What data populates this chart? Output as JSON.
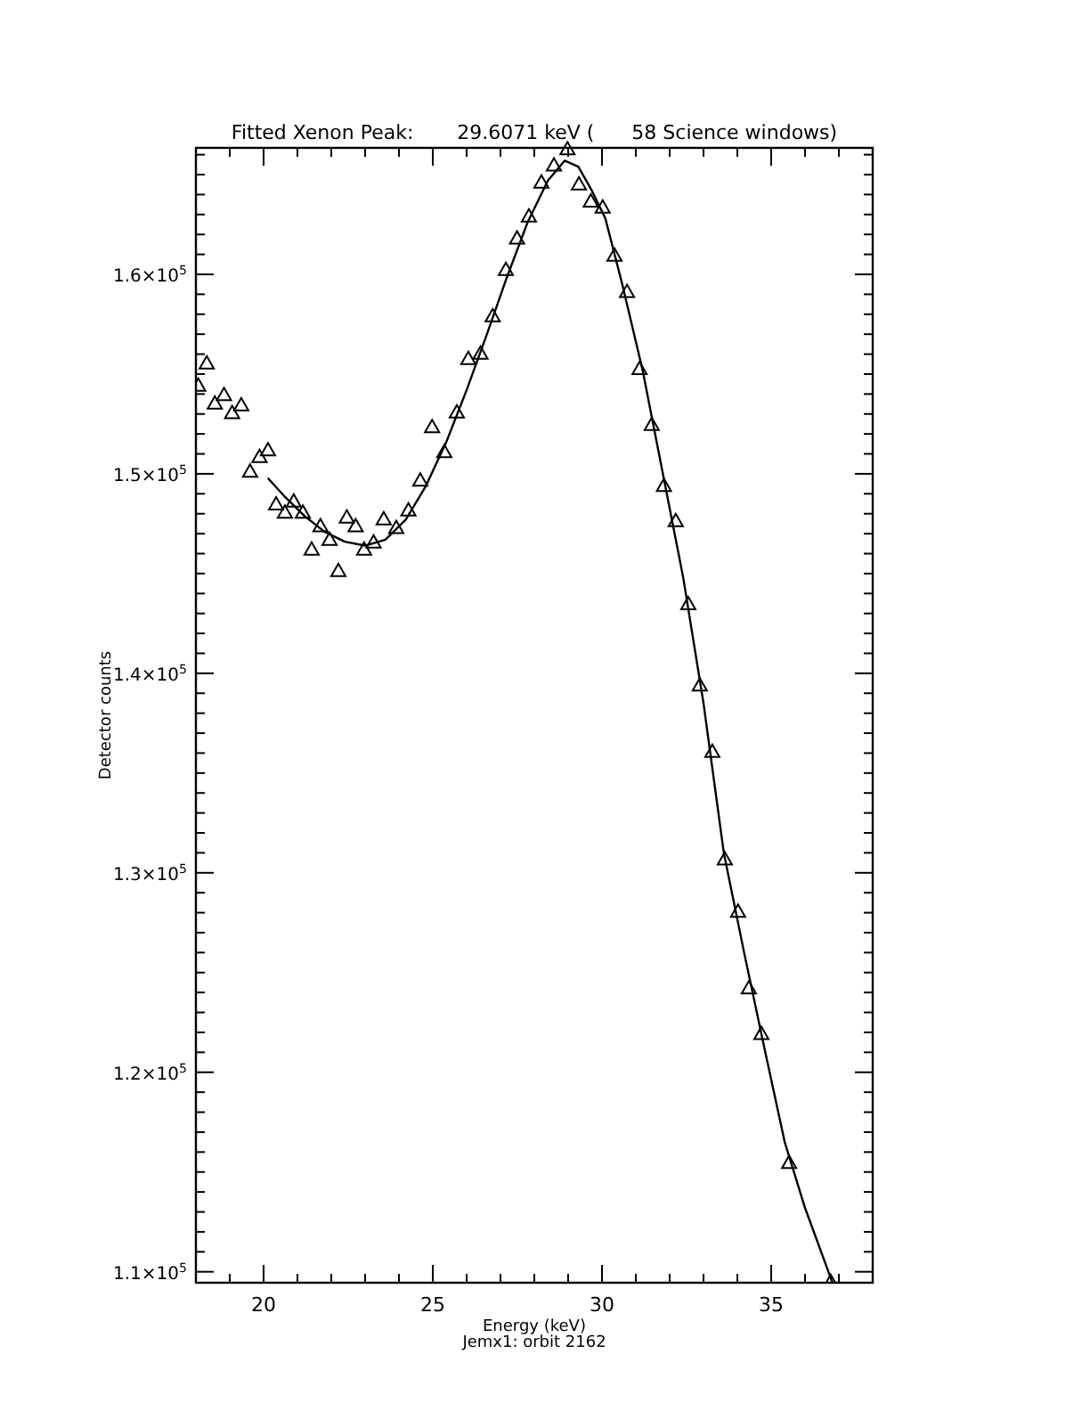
{
  "chart_data": {
    "type": "scatter",
    "title": "Fitted Xenon Peak:       29.6071 keV (      58 Science windows)",
    "xlabel": "Energy (keV)",
    "ylabel": "Detector counts",
    "annotations": [
      "Jemx1: orbit 2162"
    ],
    "marker": "triangle",
    "grid": false,
    "xlim": [
      18,
      38
    ],
    "ylim": [
      109450,
      166340
    ],
    "xticks": [
      {
        "value": 18,
        "label": null
      },
      {
        "value": 19,
        "label": null
      },
      20,
      {
        "value": 21,
        "label": null
      },
      {
        "value": 22,
        "label": null
      },
      {
        "value": 23,
        "label": null
      },
      {
        "value": 24,
        "label": null
      },
      25,
      {
        "value": 26,
        "label": null
      },
      {
        "value": 27,
        "label": null
      },
      {
        "value": 28,
        "label": null
      },
      {
        "value": 29,
        "label": null
      },
      30,
      {
        "value": 31,
        "label": null
      },
      {
        "value": 32,
        "label": null
      },
      {
        "value": 33,
        "label": null
      },
      {
        "value": 34,
        "label": null
      },
      35,
      {
        "value": 36,
        "label": null
      },
      {
        "value": 37,
        "label": null
      },
      {
        "value": 38,
        "label": null
      }
    ],
    "yticks": [
      {
        "value": 110000,
        "label": "1.1×10$^{5}$"
      },
      {
        "value": 111000,
        "label": null
      },
      {
        "value": 112000,
        "label": null
      },
      {
        "value": 113000,
        "label": null
      },
      {
        "value": 114000,
        "label": null
      },
      {
        "value": 115000,
        "label": null
      },
      {
        "value": 116000,
        "label": null
      },
      {
        "value": 117000,
        "label": null
      },
      {
        "value": 118000,
        "label": null
      },
      {
        "value": 119000,
        "label": null
      },
      {
        "value": 120000,
        "label": "1.2×10$^{5}$"
      },
      {
        "value": 121000,
        "label": null
      },
      {
        "value": 122000,
        "label": null
      },
      {
        "value": 123000,
        "label": null
      },
      {
        "value": 124000,
        "label": null
      },
      {
        "value": 125000,
        "label": null
      },
      {
        "value": 126000,
        "label": null
      },
      {
        "value": 127000,
        "label": null
      },
      {
        "value": 128000,
        "label": null
      },
      {
        "value": 129000,
        "label": null
      },
      {
        "value": 130000,
        "label": "1.3×10$^{5}$"
      },
      {
        "value": 131000,
        "label": null
      },
      {
        "value": 132000,
        "label": null
      },
      {
        "value": 133000,
        "label": null
      },
      {
        "value": 134000,
        "label": null
      },
      {
        "value": 135000,
        "label": null
      },
      {
        "value": 136000,
        "label": null
      },
      {
        "value": 137000,
        "label": null
      },
      {
        "value": 138000,
        "label": null
      },
      {
        "value": 139000,
        "label": null
      },
      {
        "value": 140000,
        "label": "1.4×10$^{5}$"
      },
      {
        "value": 141000,
        "label": null
      },
      {
        "value": 142000,
        "label": null
      },
      {
        "value": 143000,
        "label": null
      },
      {
        "value": 144000,
        "label": null
      },
      {
        "value": 145000,
        "label": null
      },
      {
        "value": 146000,
        "label": null
      },
      {
        "value": 147000,
        "label": null
      },
      {
        "value": 148000,
        "label": null
      },
      {
        "value": 149000,
        "label": null
      },
      {
        "value": 150000,
        "label": "1.5×10$^{5}$"
      },
      {
        "value": 151000,
        "label": null
      },
      {
        "value": 152000,
        "label": null
      },
      {
        "value": 153000,
        "label": null
      },
      {
        "value": 154000,
        "label": null
      },
      {
        "value": 155000,
        "label": null
      },
      {
        "value": 156000,
        "label": null
      },
      {
        "value": 157000,
        "label": null
      },
      {
        "value": 158000,
        "label": null
      },
      {
        "value": 159000,
        "label": null
      },
      {
        "value": 160000,
        "label": "1.6×10$^{5}$"
      },
      {
        "value": 161000,
        "label": null
      },
      {
        "value": 162000,
        "label": null
      },
      {
        "value": 163000,
        "label": null
      },
      {
        "value": 164000,
        "label": null
      },
      {
        "value": 165000,
        "label": null
      },
      {
        "value": 166000,
        "label": null
      }
    ],
    "series": [
      {
        "color": "#000000",
        "x": [
          18.07,
          18.32,
          18.56,
          18.83,
          19.07,
          19.34,
          19.6,
          19.88,
          20.13,
          20.37,
          20.63,
          20.89,
          21.16,
          21.42,
          21.68,
          21.95,
          22.21,
          22.46,
          22.72,
          22.97,
          23.25,
          23.55,
          23.92,
          24.28,
          24.63,
          24.98,
          25.34,
          25.71,
          26.05,
          26.41,
          26.77,
          27.16,
          27.49,
          27.84,
          28.21,
          28.58,
          28.98,
          29.32,
          29.67,
          30.02,
          30.37,
          30.74,
          31.11,
          31.47,
          31.83,
          32.18,
          32.55,
          32.89,
          33.26,
          33.63,
          34.02,
          34.34,
          34.71,
          35.53,
          36.76
        ],
        "values": [
          154430,
          155540,
          153540,
          153960,
          153060,
          153450,
          150120,
          150860,
          151190,
          148480,
          148060,
          148620,
          148060,
          146210,
          147380,
          146700,
          145140,
          147820,
          147380,
          146210,
          146570,
          147730,
          147290,
          148180,
          149670,
          152350,
          151100,
          153090,
          155770,
          156040,
          157910,
          160230,
          161810,
          162910,
          164610,
          165470,
          166280,
          164520,
          163660,
          163360,
          160950,
          159130,
          155270,
          152460,
          149400,
          147640,
          143480,
          139400,
          136070,
          130680,
          128060,
          124220,
          121930,
          115470,
          109500
        ]
      },
      {
        "type": "line",
        "color": "#000000",
        "marker": "none",
        "line_style": "solid",
        "x": [
          20.14,
          20.6,
          21.2,
          21.8,
          22.4,
          23.0,
          23.6,
          24.2,
          24.8,
          25.4,
          26.0,
          26.6,
          27.2,
          27.8,
          28.4,
          28.9,
          29.3,
          29.7,
          30.1,
          30.6,
          31.2,
          31.8,
          32.4,
          33.0,
          33.6,
          34.2,
          34.8,
          35.4,
          36.0,
          36.8
        ],
        "values": [
          149760,
          148900,
          147900,
          147100,
          146600,
          146400,
          146700,
          147700,
          149400,
          151600,
          154200,
          157000,
          159900,
          162600,
          164700,
          165700,
          165400,
          164200,
          162800,
          159500,
          155200,
          150000,
          144800,
          138500,
          131000,
          126000,
          121200,
          116500,
          113200,
          109500
        ]
      }
    ]
  }
}
